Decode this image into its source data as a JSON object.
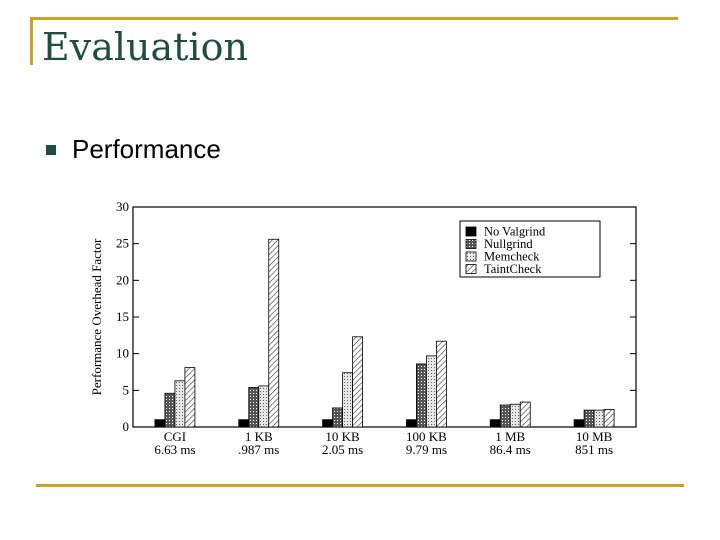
{
  "slide": {
    "title": "Evaluation",
    "bullet": "Performance",
    "accent_color": "#c9a227",
    "title_color": "#1f4f3a",
    "bullet_icon": "square-bullet-icon"
  },
  "chart_data": {
    "type": "bar",
    "ylabel": "Performance Overhead Factor",
    "xlabel": "",
    "ylim": [
      0,
      30
    ],
    "yticks": [
      0,
      5,
      10,
      15,
      20,
      25,
      30
    ],
    "categories": [
      "CGI",
      "1 KB",
      "10 KB",
      "100 KB",
      "1 MB",
      "10 MB"
    ],
    "subcategories": [
      "6.63 ms",
      ".987 ms",
      "2.05 ms",
      "9.79 ms",
      "86.4 ms",
      "851 ms"
    ],
    "legend_position": "top-right",
    "grid": false,
    "series": [
      {
        "name": "No Valgrind",
        "values": [
          1,
          1,
          1,
          1,
          1,
          1
        ],
        "pattern": "solid"
      },
      {
        "name": "Nullgrind",
        "values": [
          4.6,
          5.4,
          2.6,
          8.6,
          3.0,
          2.3
        ],
        "pattern": "dark-dots"
      },
      {
        "name": "Memcheck",
        "values": [
          6.3,
          5.6,
          7.4,
          9.7,
          3.1,
          2.3
        ],
        "pattern": "light-dots"
      },
      {
        "name": "TaintCheck",
        "values": [
          8.1,
          25.6,
          12.3,
          11.7,
          3.4,
          2.4
        ],
        "pattern": "hatch"
      }
    ]
  }
}
